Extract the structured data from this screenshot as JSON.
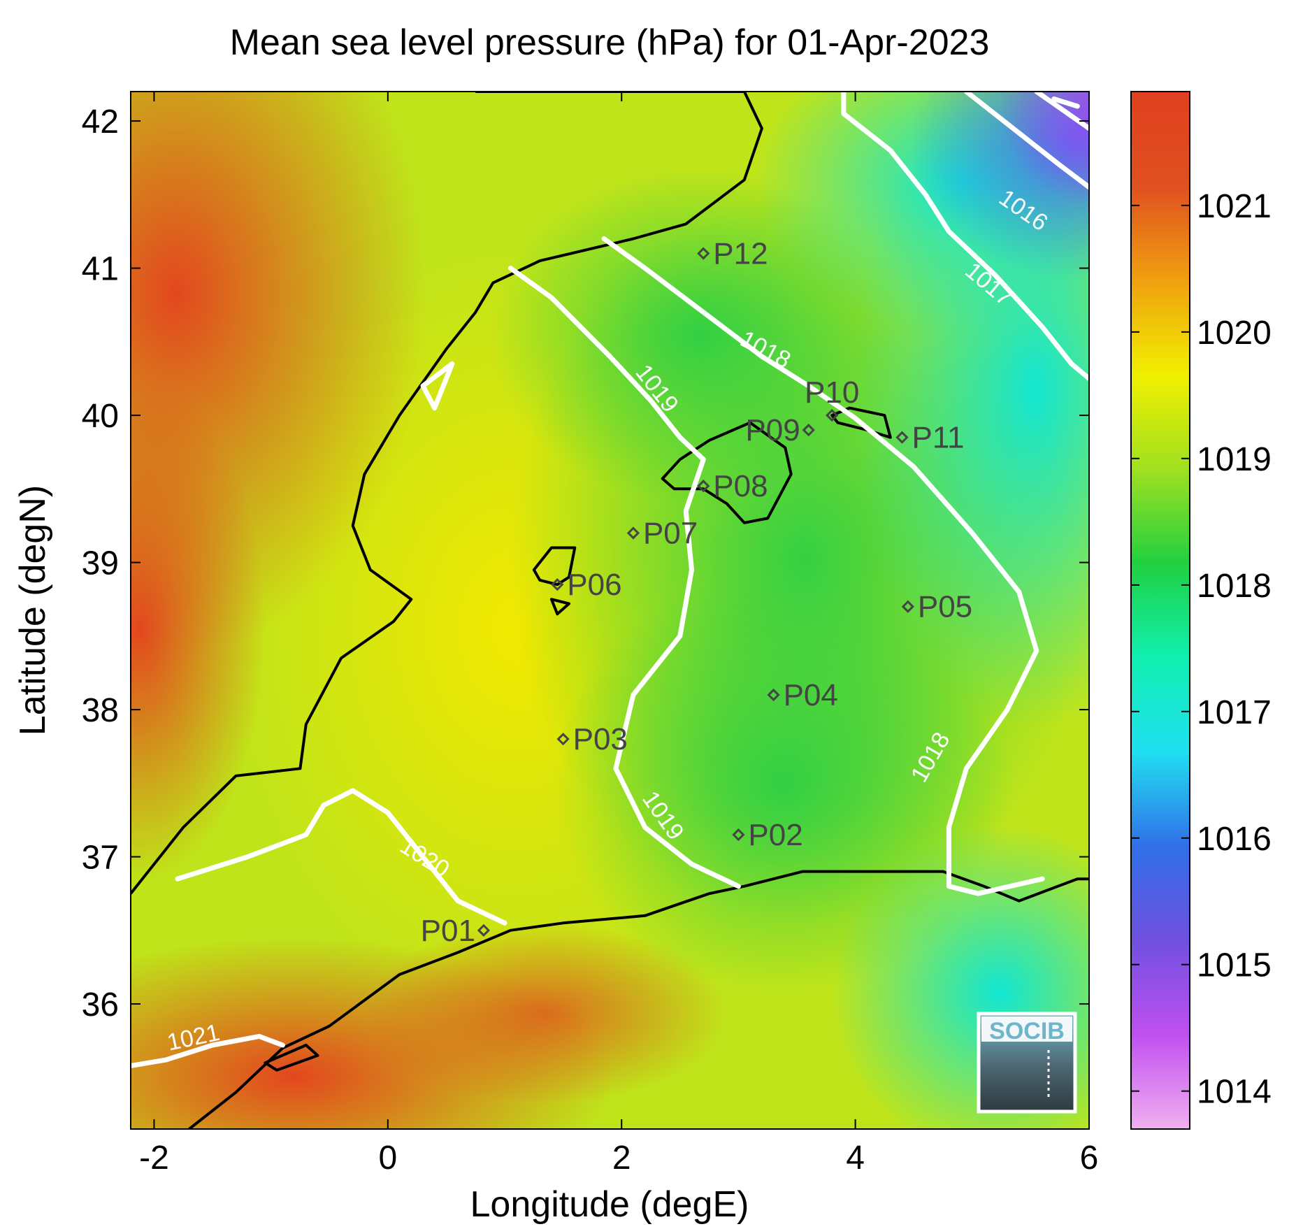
{
  "title": "Mean sea level pressure (hPa) for 01-Apr-2023",
  "axes": {
    "xlabel": "Longitude (degE)",
    "ylabel": "Latitude (degN)",
    "xlim": [
      -2.2,
      6.0
    ],
    "ylim": [
      35.15,
      42.2
    ],
    "xticks": [
      {
        "value": -2,
        "label": "-2"
      },
      {
        "value": 0,
        "label": "0"
      },
      {
        "value": 2,
        "label": "2"
      },
      {
        "value": 4,
        "label": "4"
      },
      {
        "value": 6,
        "label": "6"
      }
    ],
    "yticks": [
      {
        "value": 36,
        "label": "36"
      },
      {
        "value": 37,
        "label": "37"
      },
      {
        "value": 38,
        "label": "38"
      },
      {
        "value": 39,
        "label": "39"
      },
      {
        "value": 40,
        "label": "40"
      },
      {
        "value": 41,
        "label": "41"
      },
      {
        "value": 42,
        "label": "42"
      }
    ]
  },
  "colorbar": {
    "range": [
      1013.7,
      1021.9
    ],
    "ticks": [
      {
        "value": 1014,
        "label": "1014"
      },
      {
        "value": 1015,
        "label": "1015"
      },
      {
        "value": 1016,
        "label": "1016"
      },
      {
        "value": 1017,
        "label": "1017"
      },
      {
        "value": 1018,
        "label": "1018"
      },
      {
        "value": 1019,
        "label": "1019"
      },
      {
        "value": 1020,
        "label": "1020"
      },
      {
        "value": 1021,
        "label": "1021"
      }
    ],
    "colors": [
      "#f0b0f0",
      "#c050f0",
      "#7050e0",
      "#3070e8",
      "#20e0f0",
      "#10f0b0",
      "#20d040",
      "#a0e020",
      "#f0f000",
      "#f0a010",
      "#e05020",
      "#e04020"
    ]
  },
  "stations": [
    {
      "label": "P01",
      "lon": 0.82,
      "lat": 36.5,
      "anchor": "end"
    },
    {
      "label": "P02",
      "lon": 3.0,
      "lat": 37.15,
      "anchor": "start"
    },
    {
      "label": "P03",
      "lon": 1.5,
      "lat": 37.8,
      "anchor": "start"
    },
    {
      "label": "P04",
      "lon": 3.3,
      "lat": 38.1,
      "anchor": "start"
    },
    {
      "label": "P05",
      "lon": 4.45,
      "lat": 38.7,
      "anchor": "start"
    },
    {
      "label": "P06",
      "lon": 1.45,
      "lat": 38.85,
      "anchor": "start"
    },
    {
      "label": "P07",
      "lon": 2.1,
      "lat": 39.2,
      "anchor": "start"
    },
    {
      "label": "P08",
      "lon": 2.7,
      "lat": 39.52,
      "anchor": "start"
    },
    {
      "label": "P09",
      "lon": 3.6,
      "lat": 39.9,
      "anchor": "end"
    },
    {
      "label": "P10",
      "lon": 3.8,
      "lat": 40.0,
      "anchor": "above"
    },
    {
      "label": "P11",
      "lon": 4.4,
      "lat": 39.85,
      "anchor": "start"
    },
    {
      "label": "P12",
      "lon": 2.7,
      "lat": 41.1,
      "anchor": "start"
    }
  ],
  "contour_labels": [
    {
      "label": "1016",
      "lon": 5.4,
      "lat": 41.35,
      "angle": 35
    },
    {
      "label": "1017",
      "lon": 5.1,
      "lat": 40.85,
      "angle": 40
    },
    {
      "label": "1018",
      "lon": 3.2,
      "lat": 40.4,
      "angle": 28
    },
    {
      "label": "1019",
      "lon": 2.25,
      "lat": 40.15,
      "angle": 52
    },
    {
      "label": "1018",
      "lon": 4.7,
      "lat": 37.65,
      "angle": -60
    },
    {
      "label": "1019",
      "lon": 2.3,
      "lat": 37.25,
      "angle": 55
    },
    {
      "label": "1020",
      "lon": 0.28,
      "lat": 36.95,
      "angle": 32
    },
    {
      "label": "1021",
      "lon": -1.65,
      "lat": 35.72,
      "angle": -12
    }
  ],
  "logo_text": "SOCIB"
}
